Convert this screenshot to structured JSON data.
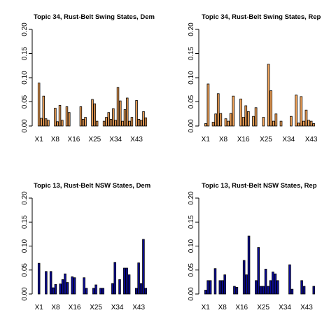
{
  "chart_data": [
    {
      "type": "bar",
      "title": "Topic 34, Rust-Belt Swing States, Dem",
      "fill": "#f5a55a",
      "ylim": [
        0,
        0.2
      ],
      "yticks": [
        "0.00",
        "0.05",
        "0.10",
        "0.15",
        "0.20"
      ],
      "xtick_labels": [
        "X1",
        "X8",
        "X16",
        "X25",
        "X34",
        "X43"
      ],
      "xtick_indices": [
        1,
        8,
        16,
        25,
        34,
        43
      ],
      "values": [
        0.089,
        0.016,
        0.062,
        0.015,
        0.012,
        0.0,
        0.0,
        0.037,
        0.009,
        0.043,
        0.012,
        0.0,
        0.04,
        0.028,
        0.0,
        0.0,
        0.0,
        0.0,
        0.04,
        0.014,
        0.018,
        0.0,
        0.0,
        0.055,
        0.046,
        0.01,
        0.0,
        0.0,
        0.01,
        0.018,
        0.028,
        0.014,
        0.036,
        0.012,
        0.08,
        0.052,
        0.01,
        0.034,
        0.058,
        0.01,
        0.018,
        0.0,
        0.053,
        0.014,
        0.012,
        0.03,
        0.017
      ]
    },
    {
      "type": "bar",
      "title": "Topic 34, Rust-Belt Swing States, Rep",
      "fill": "#f5a55a",
      "ylim": [
        0,
        0.2
      ],
      "yticks": [
        "0.00",
        "0.05",
        "0.10",
        "0.15",
        "0.20"
      ],
      "xtick_labels": [
        "X1",
        "X8",
        "X16",
        "X25",
        "X34",
        "X43"
      ],
      "xtick_indices": [
        1,
        8,
        16,
        25,
        34,
        43
      ],
      "values": [
        0.005,
        0.087,
        0.0,
        0.008,
        0.025,
        0.067,
        0.026,
        0.0,
        0.015,
        0.01,
        0.026,
        0.062,
        0.0,
        0.0,
        0.056,
        0.018,
        0.042,
        0.03,
        0.0,
        0.02,
        0.038,
        0.0,
        0.0,
        0.018,
        0.0,
        0.128,
        0.073,
        0.01,
        0.025,
        0.0,
        0.01,
        0.0,
        0.0,
        0.0,
        0.02,
        0.0,
        0.064,
        0.006,
        0.061,
        0.01,
        0.033,
        0.012,
        0.01,
        0.005
      ]
    },
    {
      "type": "bar",
      "title": "Topic 13, Rust-Belt NSW States, Dem",
      "fill": "#0c0c9a",
      "ylim": [
        0,
        0.2
      ],
      "yticks": [
        "0.00",
        "0.05",
        "0.10",
        "0.15",
        "0.20"
      ],
      "xtick_labels": [
        "X1",
        "X8",
        "X16",
        "X25",
        "X34",
        "X43"
      ],
      "xtick_indices": [
        1,
        8,
        16,
        25,
        34,
        43
      ],
      "values": [
        0.064,
        0.0,
        0.0,
        0.047,
        0.0,
        0.047,
        0.013,
        0.02,
        0.0,
        0.021,
        0.03,
        0.042,
        0.024,
        0.0,
        0.036,
        0.034,
        0.0,
        0.0,
        0.0,
        0.034,
        0.012,
        0.0,
        0.0,
        0.012,
        0.019,
        0.0,
        0.012,
        0.012,
        0.0,
        0.0,
        0.0,
        0.022,
        0.066,
        0.0,
        0.03,
        0.0,
        0.054,
        0.054,
        0.04,
        0.0,
        0.0,
        0.012,
        0.065,
        0.022,
        0.114,
        0.012
      ]
    },
    {
      "type": "bar",
      "title": "Topic 13, Rust-Belt NSW States, Rep",
      "fill": "#0c0c9a",
      "ylim": [
        0,
        0.2
      ],
      "yticks": [
        "0.00",
        "0.05",
        "0.10",
        "0.15",
        "0.20"
      ],
      "xtick_labels": [
        "X1",
        "X8",
        "X16",
        "X25",
        "X34",
        "X43"
      ],
      "xtick_indices": [
        1,
        8,
        16,
        25,
        34,
        43
      ],
      "values": [
        0.008,
        0.028,
        0.028,
        0.0,
        0.053,
        0.0,
        0.028,
        0.028,
        0.04,
        0.0,
        0.0,
        0.0,
        0.016,
        0.014,
        0.0,
        0.0,
        0.07,
        0.04,
        0.121,
        0.0,
        0.0,
        0.028,
        0.097,
        0.016,
        0.016,
        0.052,
        0.016,
        0.028,
        0.046,
        0.042,
        0.028,
        0.0,
        0.0,
        0.0,
        0.0,
        0.061,
        0.01,
        0.0,
        0.0,
        0.0,
        0.028,
        0.016,
        0.0,
        0.0,
        0.0,
        0.016
      ]
    }
  ]
}
